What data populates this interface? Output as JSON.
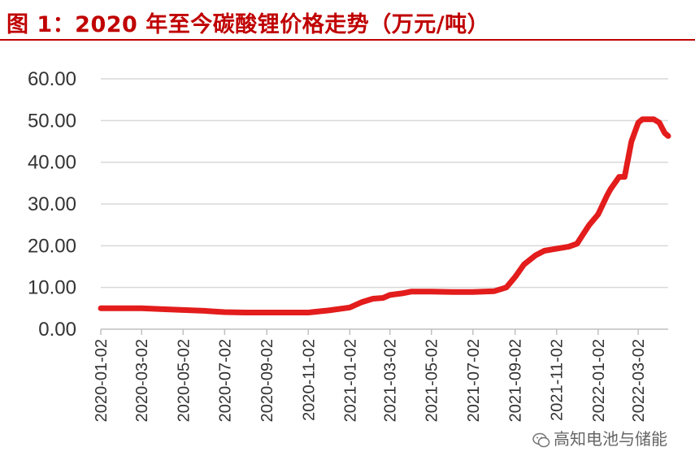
{
  "title": "图 1：2020 年至今碳酸锂价格走势（万元/吨）",
  "watermark": "高知电池与储能",
  "colors": {
    "line": "#e31c1c",
    "title": "#c00000",
    "grid": "#d9d9d9",
    "axis": "#bfbfbf"
  },
  "chart_data": {
    "type": "line",
    "title": "图 1：2020 年至今碳酸锂价格走势（万元/吨）",
    "xlabel": "",
    "ylabel": "",
    "ylim": [
      0,
      60
    ],
    "yticks": [
      "0.00",
      "10.00",
      "20.00",
      "30.00",
      "40.00",
      "50.00",
      "60.00"
    ],
    "xticks": [
      "2020-01-02",
      "2020-03-02",
      "2020-05-02",
      "2020-07-02",
      "2020-09-02",
      "2020-11-02",
      "2021-01-02",
      "2021-03-02",
      "2021-05-02",
      "2021-07-02",
      "2021-09-02",
      "2021-11-02",
      "2022-01-02",
      "2022-03-02"
    ],
    "grid": true,
    "legend": "none",
    "series": [
      {
        "x": [
          "2020-01-02",
          "2020-03-02",
          "2020-04-02",
          "2020-05-02",
          "2020-06-02",
          "2020-07-02",
          "2020-08-02",
          "2020-09-02",
          "2020-10-02",
          "2020-11-02",
          "2020-12-02",
          "2021-01-02",
          "2021-01-20",
          "2021-02-05",
          "2021-02-20",
          "2021-03-02",
          "2021-03-20",
          "2021-04-02",
          "2021-04-20",
          "2021-05-02",
          "2021-06-02",
          "2021-07-02",
          "2021-08-02",
          "2021-08-20",
          "2021-09-02",
          "2021-09-15",
          "2021-10-02",
          "2021-10-15",
          "2021-11-02",
          "2021-11-20",
          "2021-12-02",
          "2021-12-10",
          "2021-12-20",
          "2022-01-02",
          "2022-01-15",
          "2022-01-20",
          "2022-02-02",
          "2022-02-10",
          "2022-02-20",
          "2022-03-02",
          "2022-03-08",
          "2022-03-15",
          "2022-03-25",
          "2022-04-02",
          "2022-04-10",
          "2022-04-15"
        ],
        "values": [
          5.0,
          5.0,
          4.8,
          4.6,
          4.4,
          4.1,
          4.0,
          4.0,
          4.0,
          4.0,
          4.5,
          5.2,
          6.5,
          7.3,
          7.5,
          8.2,
          8.6,
          9.0,
          9.0,
          9.0,
          8.9,
          8.9,
          9.1,
          10.0,
          12.5,
          15.5,
          17.7,
          18.8,
          19.3,
          19.8,
          20.5,
          22.5,
          25.0,
          27.5,
          32.0,
          33.5,
          36.5,
          36.5,
          45.0,
          49.5,
          50.3,
          50.3,
          50.3,
          49.5,
          47.0,
          46.3
        ]
      }
    ]
  }
}
